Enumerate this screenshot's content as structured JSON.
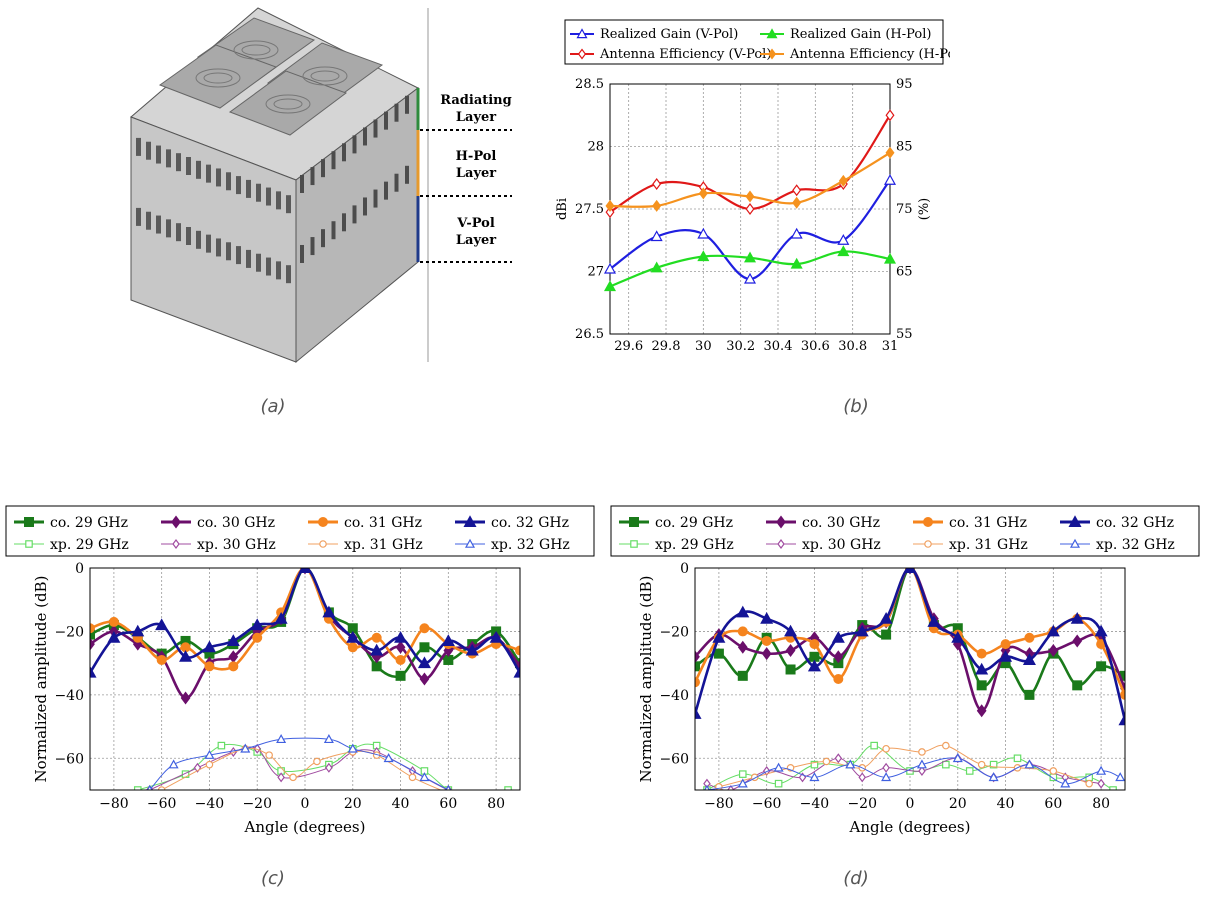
{
  "captions": {
    "a": "(a)",
    "b": "(b)",
    "c": "(c)",
    "d": "(d)"
  },
  "antenna": {
    "layers": [
      {
        "line1": "Radiating",
        "line2": "Layer",
        "color": "#2e8b3c"
      },
      {
        "line1": "H-Pol",
        "line2": "Layer",
        "color": "#e69a2e"
      },
      {
        "line1": "V-Pol",
        "line2": "Layer",
        "color": "#1f3a8a"
      }
    ]
  },
  "chart_data": [
    {
      "type": "line",
      "x": [
        29.5,
        29.75,
        30,
        30.25,
        30.5,
        30.75,
        31
      ],
      "xticks": [
        "29.6",
        "29.8",
        "30",
        "30.2",
        "30.4",
        "30.6",
        "30.8",
        "31"
      ],
      "xlim": [
        29.5,
        31
      ],
      "ylabel": "dBi",
      "ylim": [
        26.5,
        28.5
      ],
      "yticks": [
        "26.5",
        "27",
        "27.5",
        "28",
        "28.5"
      ],
      "y2label": "(%)",
      "y2lim": [
        55,
        95
      ],
      "y2ticks": [
        "55",
        "65",
        "75",
        "85",
        "95"
      ],
      "grid": true,
      "legend": "top",
      "series": [
        {
          "name": "Realized Gain (V-Pol)",
          "axis": "left",
          "marker": "triangle-open",
          "color": "#1f1fe0",
          "values": [
            27.02,
            27.28,
            27.3,
            26.94,
            27.3,
            27.25,
            27.73
          ]
        },
        {
          "name": "Realized Gain (H-Pol)",
          "axis": "left",
          "marker": "triangle-filled",
          "color": "#22dd22",
          "values": [
            26.88,
            27.03,
            27.12,
            27.11,
            27.06,
            27.16,
            27.1
          ]
        },
        {
          "name": "Antenna Efficiency (V-Pol)",
          "axis": "right",
          "marker": "diamond-open",
          "color": "#e01818",
          "values": [
            74.5,
            79.0,
            78.5,
            75.0,
            78.0,
            79.0,
            90.0
          ]
        },
        {
          "name": "Antenna Efficiency (H-Pol)",
          "axis": "right",
          "marker": "diamond-filled",
          "color": "#f5921e",
          "values": [
            75.5,
            75.5,
            77.5,
            77.0,
            76.0,
            79.5,
            84.0
          ]
        }
      ]
    },
    {
      "type": "line",
      "xlabel": "Angle (degrees)",
      "ylabel": "Normalized amplitude (dB)",
      "xlim": [
        -90,
        90
      ],
      "ylim": [
        -70,
        0
      ],
      "xticks": [
        "−80",
        "−60",
        "−40",
        "−20",
        "0",
        "20",
        "40",
        "60",
        "80"
      ],
      "yticks": [
        "0",
        "−20",
        "−40",
        "−60"
      ],
      "grid": true,
      "legend": "top",
      "series": [
        {
          "name": "co. 29 GHz",
          "color": "#1a7a1a",
          "marker": "square-filled",
          "x": [
            -90,
            -80,
            -70,
            -60,
            -50,
            -40,
            -30,
            -20,
            -10,
            0,
            10,
            20,
            30,
            40,
            50,
            60,
            70,
            80,
            90
          ],
          "values": [
            -21,
            -18,
            -22,
            -27,
            -23,
            -27,
            -24,
            -19,
            -17,
            0,
            -14,
            -19,
            -31,
            -34,
            -25,
            -29,
            -24,
            -20,
            -30
          ]
        },
        {
          "name": "co. 30 GHz",
          "color": "#6b0f6b",
          "marker": "diamond-filled",
          "x": [
            -90,
            -80,
            -70,
            -60,
            -50,
            -40,
            -30,
            -20,
            -10,
            0,
            10,
            20,
            30,
            40,
            50,
            60,
            70,
            80,
            90
          ],
          "values": [
            -24,
            -20,
            -24,
            -28,
            -41,
            -30,
            -28,
            -20,
            -16,
            0,
            -15,
            -22,
            -28,
            -25,
            -35,
            -26,
            -25,
            -22,
            -31
          ]
        },
        {
          "name": "co. 31 GHz",
          "color": "#f5841e",
          "marker": "circle-filled",
          "x": [
            -90,
            -80,
            -70,
            -60,
            -50,
            -40,
            -30,
            -20,
            -10,
            0,
            10,
            20,
            30,
            40,
            50,
            60,
            70,
            80,
            90
          ],
          "values": [
            -19,
            -17,
            -22,
            -29,
            -25,
            -31,
            -31,
            -22,
            -14,
            0,
            -16,
            -25,
            -22,
            -29,
            -19,
            -24,
            -27,
            -24,
            -26
          ]
        },
        {
          "name": "co. 32 GHz",
          "color": "#141496",
          "marker": "triangle-filled",
          "x": [
            -90,
            -80,
            -70,
            -60,
            -50,
            -40,
            -30,
            -20,
            -10,
            0,
            10,
            20,
            30,
            40,
            50,
            60,
            70,
            80,
            90
          ],
          "values": [
            -33,
            -22,
            -20,
            -18,
            -28,
            -25,
            -23,
            -18,
            -16,
            0,
            -14,
            -22,
            -26,
            -22,
            -30,
            -23,
            -26,
            -22,
            -33
          ]
        },
        {
          "name": "xp. 29 GHz",
          "color": "#66dd66",
          "marker": "square-open",
          "x": [
            -70,
            -50,
            -35,
            -20,
            -10,
            10,
            20,
            30,
            50,
            60,
            70,
            80,
            85
          ],
          "values": [
            -70,
            -65,
            -56,
            -58,
            -64,
            -62,
            -57,
            -56,
            -64,
            -70,
            -72,
            -72,
            -70
          ]
        },
        {
          "name": "xp. 30 GHz",
          "color": "#a04ca0",
          "marker": "diamond-open",
          "x": [
            -65,
            -45,
            -30,
            -20,
            -10,
            10,
            20,
            30,
            45,
            60,
            70
          ],
          "values": [
            -70,
            -63,
            -58,
            -57,
            -66,
            -63,
            -58,
            -58,
            -64,
            -70,
            -72
          ]
        },
        {
          "name": "xp. 31 GHz",
          "color": "#f0a060",
          "marker": "circle-open",
          "x": [
            -60,
            -40,
            -25,
            -15,
            -5,
            5,
            20,
            30,
            45,
            60
          ],
          "values": [
            -70,
            -62,
            -57,
            -59,
            -66,
            -61,
            -58,
            -59,
            -66,
            -71
          ]
        },
        {
          "name": "xp. 32 GHz",
          "color": "#4060e0",
          "marker": "triangle-open",
          "x": [
            -65,
            -55,
            -40,
            -25,
            -10,
            10,
            20,
            35,
            50,
            60
          ],
          "values": [
            -70,
            -62,
            -59,
            -57,
            -54,
            -54,
            -57,
            -60,
            -66,
            -70
          ]
        }
      ]
    },
    {
      "type": "line",
      "xlabel": "Angle (degrees)",
      "ylabel": "Normalized amplitude (dB)",
      "xlim": [
        -90,
        90
      ],
      "ylim": [
        -70,
        0
      ],
      "xticks": [
        "−80",
        "−60",
        "−40",
        "−20",
        "0",
        "20",
        "40",
        "60",
        "80"
      ],
      "yticks": [
        "0",
        "−20",
        "−40",
        "−60"
      ],
      "grid": true,
      "legend": "top",
      "series": [
        {
          "name": "co. 29 GHz",
          "color": "#1a7a1a",
          "marker": "square-filled",
          "x": [
            -90,
            -80,
            -70,
            -60,
            -50,
            -40,
            -30,
            -20,
            -10,
            0,
            10,
            20,
            30,
            40,
            50,
            60,
            70,
            80,
            90
          ],
          "values": [
            -31,
            -27,
            -34,
            -22,
            -32,
            -28,
            -30,
            -18,
            -21,
            0,
            -18,
            -19,
            -37,
            -30,
            -40,
            -27,
            -37,
            -31,
            -34
          ]
        },
        {
          "name": "co. 30 GHz",
          "color": "#6b0f6b",
          "marker": "diamond-filled",
          "x": [
            -90,
            -80,
            -70,
            -60,
            -50,
            -40,
            -30,
            -20,
            -10,
            0,
            10,
            20,
            30,
            40,
            50,
            60,
            70,
            80,
            90
          ],
          "values": [
            -28,
            -21,
            -25,
            -27,
            -26,
            -22,
            -28,
            -19,
            -17,
            0,
            -16,
            -24,
            -45,
            -26,
            -27,
            -26,
            -23,
            -22,
            -38
          ]
        },
        {
          "name": "co. 31 GHz",
          "color": "#f5841e",
          "marker": "circle-filled",
          "x": [
            -90,
            -80,
            -70,
            -60,
            -50,
            -40,
            -30,
            -20,
            -10,
            0,
            10,
            20,
            30,
            40,
            50,
            60,
            70,
            80,
            90
          ],
          "values": [
            -36,
            -22,
            -20,
            -23,
            -22,
            -24,
            -35,
            -21,
            -17,
            0,
            -19,
            -21,
            -27,
            -24,
            -22,
            -20,
            -16,
            -24,
            -40
          ]
        },
        {
          "name": "co. 32 GHz",
          "color": "#141496",
          "marker": "triangle-filled",
          "x": [
            -90,
            -80,
            -70,
            -60,
            -50,
            -40,
            -30,
            -20,
            -10,
            0,
            10,
            20,
            30,
            40,
            50,
            60,
            70,
            80,
            90
          ],
          "values": [
            -46,
            -22,
            -14,
            -16,
            -20,
            -31,
            -22,
            -20,
            -16,
            0,
            -17,
            -22,
            -32,
            -28,
            -29,
            -20,
            -16,
            -20,
            -48
          ]
        },
        {
          "name": "xp. 29 GHz",
          "color": "#66dd66",
          "marker": "square-open",
          "x": [
            -85,
            -70,
            -55,
            -40,
            -25,
            -15,
            0,
            15,
            25,
            35,
            45,
            60,
            75,
            85
          ],
          "values": [
            -70,
            -65,
            -68,
            -62,
            -62,
            -56,
            -64,
            -62,
            -64,
            -62,
            -60,
            -66,
            -66,
            -70
          ]
        },
        {
          "name": "xp. 30 GHz",
          "color": "#a04ca0",
          "marker": "diamond-open",
          "x": [
            -85,
            -75,
            -60,
            -45,
            -30,
            -20,
            -10,
            5,
            20,
            35,
            50,
            65,
            80
          ],
          "values": [
            -68,
            -70,
            -64,
            -66,
            -60,
            -66,
            -63,
            -64,
            -60,
            -66,
            -62,
            -66,
            -68
          ]
        },
        {
          "name": "xp. 31 GHz",
          "color": "#f0a060",
          "marker": "circle-open",
          "x": [
            -80,
            -65,
            -50,
            -35,
            -20,
            -10,
            5,
            15,
            30,
            45,
            60,
            75
          ],
          "values": [
            -69,
            -66,
            -63,
            -61,
            -63,
            -57,
            -58,
            -56,
            -62,
            -63,
            -64,
            -68
          ]
        },
        {
          "name": "xp. 32 GHz",
          "color": "#4060e0",
          "marker": "triangle-open",
          "x": [
            -85,
            -70,
            -55,
            -40,
            -25,
            -10,
            5,
            20,
            35,
            50,
            65,
            80,
            88
          ],
          "values": [
            -70,
            -68,
            -63,
            -66,
            -62,
            -66,
            -62,
            -60,
            -66,
            -62,
            -68,
            -64,
            -66
          ]
        }
      ]
    }
  ]
}
